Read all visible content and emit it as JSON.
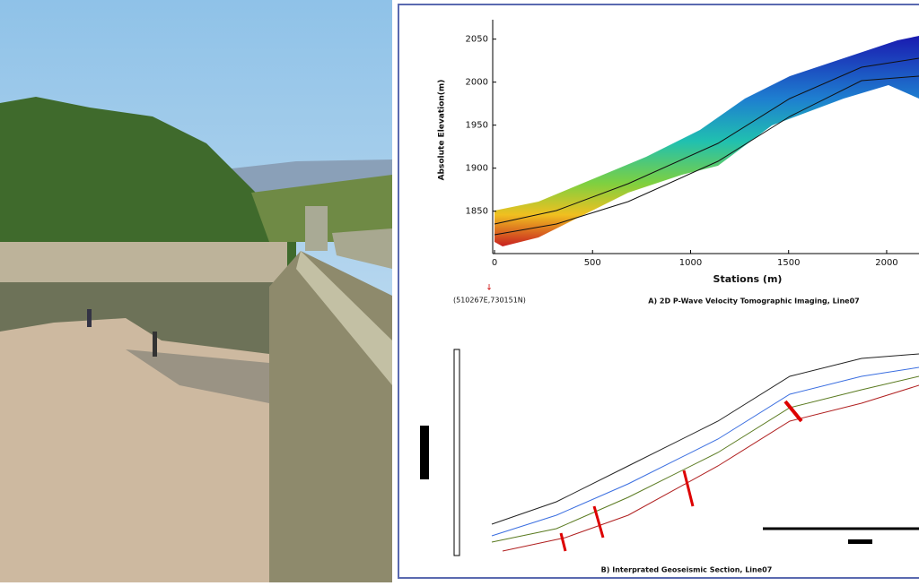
{
  "panel_a": {
    "y_label": "Absolute Elevation(m)",
    "x_label": "Stations (m)",
    "xlim": [
      0,
      2165
    ],
    "ylim": [
      1808,
      2083
    ],
    "xticks": [
      0,
      500,
      1000,
      1500,
      2000
    ],
    "yticks": [
      1850,
      1900,
      1950,
      2000,
      2050
    ],
    "coordinate": "(510267E,730151N)",
    "caption": "A) 2D P-Wave Velocity Tomographic Imaging, Line07"
  },
  "panel_b": {
    "caption": "B) Interprated Geoseismic Section, Line07"
  }
}
